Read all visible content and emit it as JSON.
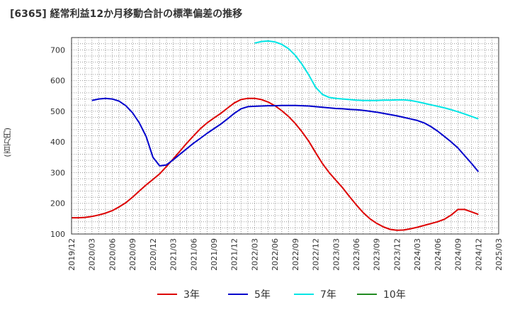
{
  "title": "[6365]  経常利益12か月移動合計の標準偏差の推移",
  "y_unit": "(百万円)",
  "chart_data": {
    "type": "line",
    "title": "[6365]  経常利益12か月移動合計の標準偏差の推移",
    "ylabel": "(百万円)",
    "xlabel": "",
    "ylim": [
      100,
      740
    ],
    "xlim": [
      "2019-12",
      "2025-03"
    ],
    "yticks": [
      100,
      200,
      300,
      400,
      500,
      600,
      700
    ],
    "xticks": [
      "2019/12",
      "2020/03",
      "2020/06",
      "2020/09",
      "2020/12",
      "2021/03",
      "2021/06",
      "2021/09",
      "2021/12",
      "2022/03",
      "2022/06",
      "2022/09",
      "2022/12",
      "2023/03",
      "2023/06",
      "2023/09",
      "2023/12",
      "2024/03",
      "2024/06",
      "2024/09",
      "2024/12",
      "2025/03"
    ],
    "grid": true,
    "legend_position": "bottom",
    "series": [
      {
        "name": "3年",
        "color": "#dd0000",
        "points": [
          [
            "2019-12",
            153
          ],
          [
            "2020-01",
            153
          ],
          [
            "2020-02",
            154
          ],
          [
            "2020-03",
            157
          ],
          [
            "2020-04",
            162
          ],
          [
            "2020-05",
            168
          ],
          [
            "2020-06",
            176
          ],
          [
            "2020-07",
            188
          ],
          [
            "2020-08",
            202
          ],
          [
            "2020-09",
            220
          ],
          [
            "2020-10",
            240
          ],
          [
            "2020-11",
            260
          ],
          [
            "2020-12",
            278
          ],
          [
            "2021-01",
            296
          ],
          [
            "2021-02",
            320
          ],
          [
            "2021-03",
            345
          ],
          [
            "2021-04",
            370
          ],
          [
            "2021-05",
            396
          ],
          [
            "2021-06",
            420
          ],
          [
            "2021-07",
            443
          ],
          [
            "2021-08",
            462
          ],
          [
            "2021-09",
            478
          ],
          [
            "2021-10",
            493
          ],
          [
            "2021-11",
            510
          ],
          [
            "2021-12",
            527
          ],
          [
            "2022-01",
            538
          ],
          [
            "2022-02",
            542
          ],
          [
            "2022-03",
            542
          ],
          [
            "2022-04",
            538
          ],
          [
            "2022-05",
            530
          ],
          [
            "2022-06",
            518
          ],
          [
            "2022-07",
            502
          ],
          [
            "2022-08",
            483
          ],
          [
            "2022-09",
            460
          ],
          [
            "2022-10",
            433
          ],
          [
            "2022-11",
            402
          ],
          [
            "2022-12",
            365
          ],
          [
            "2023-01",
            330
          ],
          [
            "2023-02",
            300
          ],
          [
            "2023-03",
            275
          ],
          [
            "2023-04",
            250
          ],
          [
            "2023-05",
            222
          ],
          [
            "2023-06",
            195
          ],
          [
            "2023-07",
            170
          ],
          [
            "2023-08",
            150
          ],
          [
            "2023-09",
            135
          ],
          [
            "2023-10",
            123
          ],
          [
            "2023-11",
            115
          ],
          [
            "2023-12",
            112
          ],
          [
            "2024-01",
            113
          ],
          [
            "2024-02",
            117
          ],
          [
            "2024-03",
            122
          ],
          [
            "2024-04",
            128
          ],
          [
            "2024-05",
            134
          ],
          [
            "2024-06",
            140
          ],
          [
            "2024-07",
            148
          ],
          [
            "2024-08",
            162
          ],
          [
            "2024-09",
            180
          ],
          [
            "2024-10",
            180
          ],
          [
            "2024-11",
            172
          ],
          [
            "2024-12",
            164
          ]
        ]
      },
      {
        "name": "5年",
        "color": "#0000cc",
        "points": [
          [
            "2020-03",
            535
          ],
          [
            "2020-04",
            540
          ],
          [
            "2020-05",
            542
          ],
          [
            "2020-06",
            540
          ],
          [
            "2020-07",
            533
          ],
          [
            "2020-08",
            518
          ],
          [
            "2020-09",
            495
          ],
          [
            "2020-10",
            462
          ],
          [
            "2020-11",
            418
          ],
          [
            "2020-12",
            350
          ],
          [
            "2021-01",
            322
          ],
          [
            "2021-02",
            325
          ],
          [
            "2021-03",
            342
          ],
          [
            "2021-04",
            360
          ],
          [
            "2021-05",
            378
          ],
          [
            "2021-06",
            396
          ],
          [
            "2021-07",
            412
          ],
          [
            "2021-08",
            428
          ],
          [
            "2021-09",
            443
          ],
          [
            "2021-10",
            458
          ],
          [
            "2021-11",
            475
          ],
          [
            "2021-12",
            493
          ],
          [
            "2022-01",
            508
          ],
          [
            "2022-02",
            515
          ],
          [
            "2022-03",
            516
          ],
          [
            "2022-04",
            517
          ],
          [
            "2022-05",
            518
          ],
          [
            "2022-06",
            518
          ],
          [
            "2022-07",
            519
          ],
          [
            "2022-08",
            519
          ],
          [
            "2022-09",
            519
          ],
          [
            "2022-10",
            518
          ],
          [
            "2022-11",
            517
          ],
          [
            "2022-12",
            515
          ],
          [
            "2023-01",
            513
          ],
          [
            "2023-02",
            511
          ],
          [
            "2023-03",
            509
          ],
          [
            "2023-04",
            508
          ],
          [
            "2023-05",
            506
          ],
          [
            "2023-06",
            505
          ],
          [
            "2023-07",
            503
          ],
          [
            "2023-08",
            500
          ],
          [
            "2023-09",
            497
          ],
          [
            "2023-10",
            493
          ],
          [
            "2023-11",
            489
          ],
          [
            "2023-12",
            485
          ],
          [
            "2024-01",
            480
          ],
          [
            "2024-02",
            475
          ],
          [
            "2024-03",
            470
          ],
          [
            "2024-04",
            462
          ],
          [
            "2024-05",
            450
          ],
          [
            "2024-06",
            435
          ],
          [
            "2024-07",
            418
          ],
          [
            "2024-08",
            400
          ],
          [
            "2024-09",
            380
          ],
          [
            "2024-10",
            355
          ],
          [
            "2024-11",
            330
          ],
          [
            "2024-12",
            303
          ]
        ]
      },
      {
        "name": "7年",
        "color": "#00e5e5",
        "points": [
          [
            "2022-03",
            722
          ],
          [
            "2022-04",
            727
          ],
          [
            "2022-05",
            729
          ],
          [
            "2022-06",
            726
          ],
          [
            "2022-07",
            718
          ],
          [
            "2022-08",
            704
          ],
          [
            "2022-09",
            682
          ],
          [
            "2022-10",
            653
          ],
          [
            "2022-11",
            618
          ],
          [
            "2022-12",
            578
          ],
          [
            "2023-01",
            555
          ],
          [
            "2023-02",
            545
          ],
          [
            "2023-03",
            542
          ],
          [
            "2023-04",
            540
          ],
          [
            "2023-05",
            538
          ],
          [
            "2023-06",
            536
          ],
          [
            "2023-07",
            535
          ],
          [
            "2023-08",
            535
          ],
          [
            "2023-09",
            535
          ],
          [
            "2023-10",
            536
          ],
          [
            "2023-11",
            536
          ],
          [
            "2023-12",
            537
          ],
          [
            "2024-01",
            537
          ],
          [
            "2024-02",
            535
          ],
          [
            "2024-03",
            531
          ],
          [
            "2024-04",
            526
          ],
          [
            "2024-05",
            521
          ],
          [
            "2024-06",
            516
          ],
          [
            "2024-07",
            511
          ],
          [
            "2024-08",
            505
          ],
          [
            "2024-09",
            498
          ],
          [
            "2024-10",
            491
          ],
          [
            "2024-11",
            483
          ],
          [
            "2024-12",
            475
          ]
        ]
      },
      {
        "name": "10年",
        "color": "#228b22",
        "points": []
      }
    ]
  }
}
